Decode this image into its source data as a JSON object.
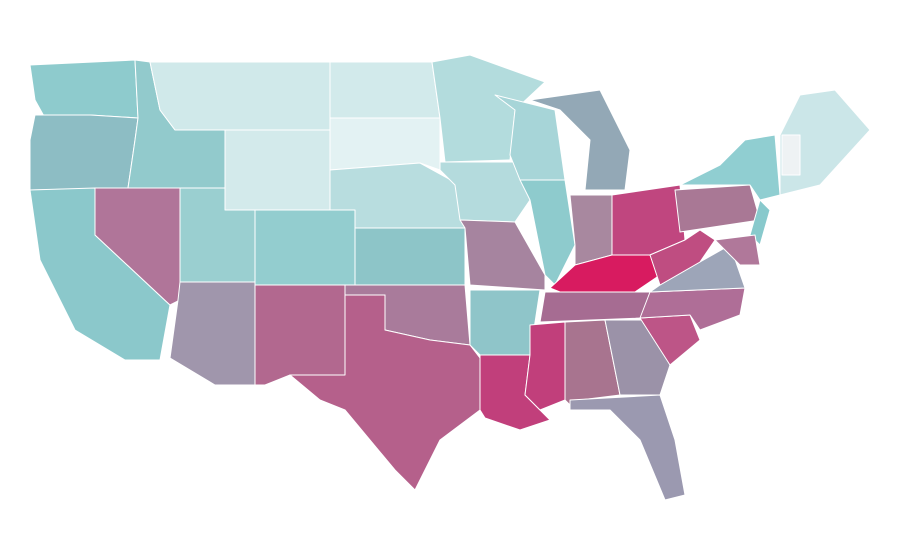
{
  "map": {
    "regions": [
      {
        "color": "#8ecbcd"
      },
      {
        "color": "#8dbdc4"
      },
      {
        "color": "#8bc8cb"
      },
      {
        "color": "#92cacc"
      },
      {
        "color": "#b07599"
      },
      {
        "color": "#d0e9ea"
      },
      {
        "color": "#d3eaeb"
      },
      {
        "color": "#9acfd0"
      },
      {
        "color": "#a096ac"
      },
      {
        "color": "#93cdcf"
      },
      {
        "color": "#b2688f"
      },
      {
        "color": "#d2eaeb"
      },
      {
        "color": "#e3f2f3"
      },
      {
        "color": "#b8dddf"
      },
      {
        "color": "#8dc5c8"
      },
      {
        "color": "#a97b9b"
      },
      {
        "color": "#b5608b"
      },
      {
        "color": "#b3dcdd"
      },
      {
        "color": "#b4dbdd"
      },
      {
        "color": "#a6849f"
      },
      {
        "color": "#8fc5c9"
      },
      {
        "color": "#c13f7b"
      },
      {
        "color": "#a7d5d8"
      },
      {
        "color": "#8ecbcd"
      },
      {
        "color": "#93a8b6"
      },
      {
        "color": "#a8889f"
      },
      {
        "color": "#c0467f"
      },
      {
        "color": "#d81b60"
      },
      {
        "color": "#a66c92"
      },
      {
        "color": "#c13f7b"
      },
      {
        "color": "#a8748f"
      },
      {
        "color": "#9b92a8"
      },
      {
        "color": "#9b99b0"
      },
      {
        "color": "#bd5587"
      },
      {
        "color": "#af6e97"
      },
      {
        "color": "#9da5b8"
      },
      {
        "color": "#bf4d81"
      },
      {
        "color": "#a97895"
      },
      {
        "color": "#90ced1"
      },
      {
        "color": "#88c9cc"
      },
      {
        "color": "#b0789a"
      },
      {
        "color": "#cbe6e8"
      },
      {
        "color": "#eef2f4"
      }
    ]
  }
}
